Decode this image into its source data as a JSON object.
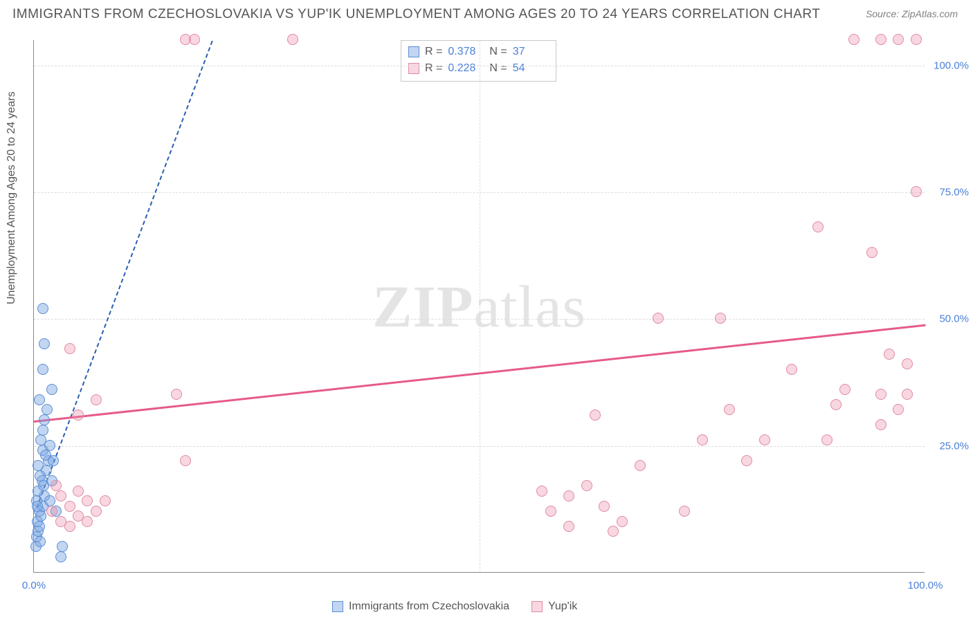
{
  "title": "IMMIGRANTS FROM CZECHOSLOVAKIA VS YUP'IK UNEMPLOYMENT AMONG AGES 20 TO 24 YEARS CORRELATION CHART",
  "source": "Source: ZipAtlas.com",
  "ylabel": "Unemployment Among Ages 20 to 24 years",
  "watermark_bold": "ZIP",
  "watermark_rest": "atlas",
  "chart": {
    "type": "scatter",
    "xlim": [
      0,
      100
    ],
    "ylim": [
      0,
      105
    ],
    "yticks": [
      25,
      50,
      75,
      100
    ],
    "ytick_labels": [
      "25.0%",
      "50.0%",
      "75.0%",
      "100.0%"
    ],
    "xticks": [
      0,
      50,
      100
    ],
    "xtick_labels": [
      "0.0%",
      "",
      "100.0%"
    ],
    "grid_color": "#dcdcdc",
    "background_color": "#ffffff",
    "point_radius": 8,
    "series": [
      {
        "name": "Immigrants from Czechoslovakia",
        "short": "blue",
        "R": "0.378",
        "N": "37",
        "fill": "rgba(120,165,225,0.45)",
        "stroke": "#5b8ed6",
        "trend_color": "#2a5fb0",
        "trend_dash": true,
        "trend": {
          "x1": 0.3,
          "y1": 13,
          "x2": 20,
          "y2": 105
        },
        "points": [
          [
            0.2,
            5
          ],
          [
            0.3,
            7
          ],
          [
            0.5,
            8
          ],
          [
            0.7,
            6
          ],
          [
            0.4,
            10
          ],
          [
            0.6,
            12
          ],
          [
            0.8,
            11
          ],
          [
            1.0,
            13
          ],
          [
            1.2,
            15
          ],
          [
            0.5,
            16
          ],
          [
            0.9,
            18
          ],
          [
            1.4,
            20
          ],
          [
            1.6,
            22
          ],
          [
            1.0,
            24
          ],
          [
            1.8,
            25
          ],
          [
            0.3,
            14
          ],
          [
            0.6,
            9
          ],
          [
            0.4,
            13
          ],
          [
            1.1,
            17
          ],
          [
            0.7,
            19
          ],
          [
            0.5,
            21
          ],
          [
            1.3,
            23
          ],
          [
            0.8,
            26
          ],
          [
            1.0,
            28
          ],
          [
            1.2,
            30
          ],
          [
            1.5,
            32
          ],
          [
            0.6,
            34
          ],
          [
            2.0,
            36
          ],
          [
            1.0,
            40
          ],
          [
            1.2,
            45
          ],
          [
            1.0,
            52
          ],
          [
            3.0,
            3
          ],
          [
            3.2,
            5
          ],
          [
            2.5,
            12
          ],
          [
            2.0,
            18
          ],
          [
            2.2,
            22
          ],
          [
            1.8,
            14
          ]
        ]
      },
      {
        "name": "Yup'ik",
        "short": "pink",
        "R": "0.228",
        "N": "54",
        "fill": "rgba(235,140,165,0.35)",
        "stroke": "#e08aa5",
        "trend_color": "#e65a8a",
        "trend_dash": false,
        "trend": {
          "x1": 0,
          "y1": 30,
          "x2": 100,
          "y2": 49
        },
        "points": [
          [
            2,
            12
          ],
          [
            3,
            10
          ],
          [
            4,
            13
          ],
          [
            5,
            11
          ],
          [
            6,
            14
          ],
          [
            3,
            15
          ],
          [
            5,
            16
          ],
          [
            4,
            9
          ],
          [
            7,
            12
          ],
          [
            8,
            14
          ],
          [
            2.5,
            17
          ],
          [
            6,
            10
          ],
          [
            4,
            44
          ],
          [
            5,
            31
          ],
          [
            16,
            35
          ],
          [
            17,
            22
          ],
          [
            7,
            34
          ],
          [
            17,
            105
          ],
          [
            18,
            105
          ],
          [
            29,
            105
          ],
          [
            57,
            16
          ],
          [
            58,
            12
          ],
          [
            60,
            15
          ],
          [
            62,
            17
          ],
          [
            60,
            9
          ],
          [
            64,
            13
          ],
          [
            65,
            8
          ],
          [
            66,
            10
          ],
          [
            63,
            31
          ],
          [
            68,
            21
          ],
          [
            70,
            50
          ],
          [
            73,
            12
          ],
          [
            75,
            26
          ],
          [
            77,
            50
          ],
          [
            78,
            32
          ],
          [
            80,
            22
          ],
          [
            82,
            26
          ],
          [
            85,
            40
          ],
          [
            88,
            68
          ],
          [
            89,
            26
          ],
          [
            90,
            33
          ],
          [
            91,
            36
          ],
          [
            92,
            105
          ],
          [
            94,
            63
          ],
          [
            95,
            29
          ],
          [
            95,
            35
          ],
          [
            96,
            43
          ],
          [
            97,
            32
          ],
          [
            98,
            35
          ],
          [
            98,
            41
          ],
          [
            99,
            75
          ],
          [
            95,
            105
          ],
          [
            97,
            105
          ],
          [
            99,
            105
          ]
        ]
      }
    ],
    "legend_bottom": [
      {
        "label": "Immigrants from Czechoslovakia",
        "fill": "rgba(120,165,225,0.45)",
        "stroke": "#5b8ed6"
      },
      {
        "label": "Yup'ik",
        "fill": "rgba(235,140,165,0.35)",
        "stroke": "#e08aa5"
      }
    ]
  }
}
